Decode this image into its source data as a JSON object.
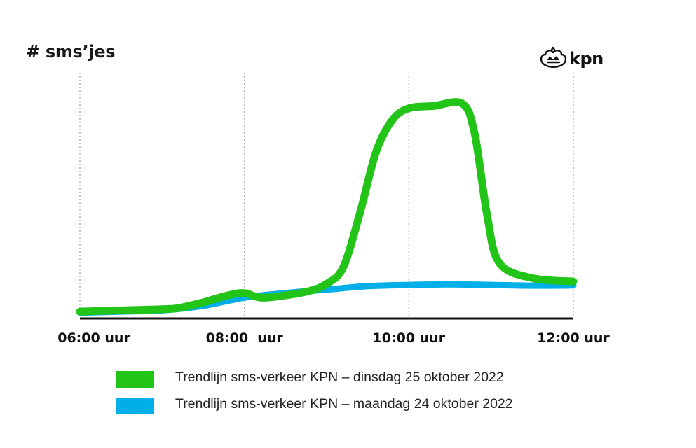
{
  "chart_data": {
    "type": "line",
    "ylabel": "# sms’jes",
    "xlabel": "",
    "x_ticks": [
      "06:00 uur",
      "08:00  uur",
      "10:00 uur",
      "12:00 uur"
    ],
    "x_range": [
      6,
      12
    ],
    "y_unit": "relative",
    "ylim": [
      0,
      100
    ],
    "grid": "vertical dotted",
    "series": [
      {
        "name": "Trendlijn sms-verkeer KPN – dinsdag 25 oktober 2022",
        "color": "#22c417",
        "points": [
          [
            6.0,
            3
          ],
          [
            6.5,
            3.5
          ],
          [
            7.0,
            4
          ],
          [
            7.2,
            4.5
          ],
          [
            7.5,
            7
          ],
          [
            7.8,
            10
          ],
          [
            8.0,
            11
          ],
          [
            8.2,
            9
          ],
          [
            8.5,
            10
          ],
          [
            8.8,
            12
          ],
          [
            9.0,
            15
          ],
          [
            9.2,
            22
          ],
          [
            9.4,
            45
          ],
          [
            9.6,
            72
          ],
          [
            9.8,
            86
          ],
          [
            10.0,
            91
          ],
          [
            10.3,
            92
          ],
          [
            10.65,
            93
          ],
          [
            10.8,
            80
          ],
          [
            10.95,
            45
          ],
          [
            11.1,
            24
          ],
          [
            11.5,
            17.5
          ],
          [
            12.0,
            16
          ]
        ]
      },
      {
        "name": "Trendlijn sms-verkeer KPN – maandag 24 oktober 2022",
        "color": "#00aee8",
        "points": [
          [
            6.0,
            2.5
          ],
          [
            6.5,
            3
          ],
          [
            7.0,
            3.5
          ],
          [
            7.5,
            5.5
          ],
          [
            8.0,
            9
          ],
          [
            8.5,
            11
          ],
          [
            9.0,
            12.5
          ],
          [
            9.5,
            14
          ],
          [
            10.0,
            14.5
          ],
          [
            10.5,
            14.8
          ],
          [
            11.0,
            14.5
          ],
          [
            11.5,
            14.2
          ],
          [
            12.0,
            14.3
          ]
        ]
      }
    ]
  },
  "legend": [
    {
      "label": "Trendlijn sms-verkeer KPN – dinsdag 25 oktober 2022",
      "color": "#22c417"
    },
    {
      "label": "Trendlijn sms-verkeer KPN – maandag 24 oktober 2022",
      "color": "#00aee8"
    }
  ],
  "brand": {
    "name": "kpn"
  }
}
